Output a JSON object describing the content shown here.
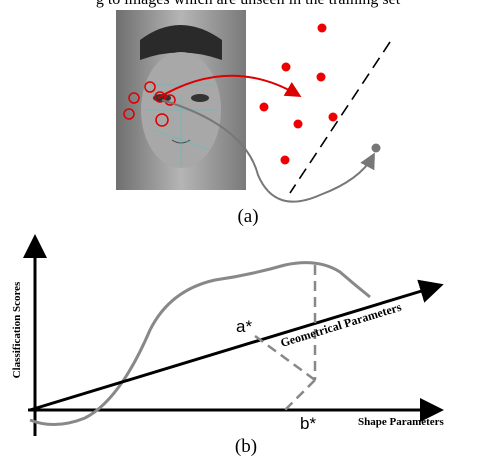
{
  "caption_top": "g to images which are unseen in the training set",
  "panel_a": {
    "label": "(a)"
  },
  "panel_b": {
    "label": "(b)",
    "y_axis_label": "Classification Scores",
    "x_axis_label": "Shape Parameters",
    "diagonal_axis_label": "Geometrical Parameters",
    "point_a": "a*",
    "point_b": "b*"
  }
}
